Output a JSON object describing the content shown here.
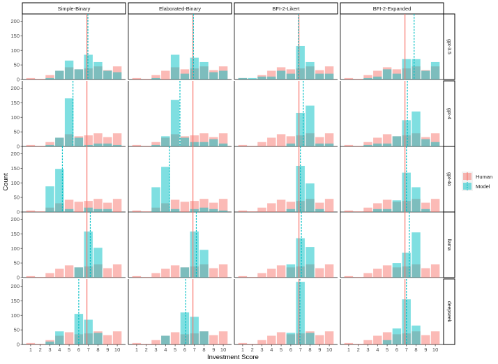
{
  "chart_data": {
    "type": "faceted-histogram",
    "xlabel": "Investment Score",
    "ylabel": "Count",
    "x": [
      1,
      2,
      3,
      4,
      5,
      6,
      7,
      8,
      9,
      10
    ],
    "ylim": [
      0,
      225
    ],
    "yticks": [
      0,
      50,
      100,
      150,
      200
    ],
    "xticks": [
      1,
      2,
      3,
      4,
      5,
      6,
      7,
      8,
      9,
      10
    ],
    "columns": [
      "Simple-Binary",
      "Elaborated-Binary",
      "BFI-2-Likert",
      "BFI-2-Expanded"
    ],
    "rows": [
      "gpt-3.5",
      "gpt-4",
      "gpt-4o",
      "llama",
      "deepseek"
    ],
    "legend": {
      "human": "Human",
      "model": "Model",
      "human_color": "#F8766D",
      "model_color": "#00BFC4",
      "position": "right"
    },
    "human_distribution": [
      5,
      2,
      15,
      30,
      42,
      35,
      38,
      45,
      32,
      45
    ],
    "human_mean": 6.85,
    "panels": [
      {
        "row": "gpt-3.5",
        "column": "Simple-Binary",
        "model_values": [
          0,
          0,
          5,
          30,
          65,
          35,
          85,
          60,
          30,
          25
        ],
        "model_mean": 6.95
      },
      {
        "row": "gpt-3.5",
        "column": "Elaborated-Binary",
        "model_values": [
          0,
          0,
          5,
          0,
          85,
          20,
          75,
          60,
          25,
          30
        ],
        "model_mean": 6.9
      },
      {
        "row": "gpt-3.5",
        "column": "BFI-2-Likert",
        "model_values": [
          5,
          5,
          10,
          10,
          30,
          20,
          115,
          60,
          20,
          20
        ],
        "model_mean": 6.8
      },
      {
        "row": "gpt-3.5",
        "column": "BFI-2-Expanded",
        "model_values": [
          0,
          0,
          5,
          10,
          35,
          20,
          70,
          70,
          30,
          60
        ],
        "model_mean": 7.8
      },
      {
        "row": "gpt-4",
        "column": "Simple-Binary",
        "model_values": [
          0,
          0,
          5,
          30,
          165,
          30,
          5,
          10,
          10,
          5
        ],
        "model_mean": 5.4
      },
      {
        "row": "gpt-4",
        "column": "Elaborated-Binary",
        "model_values": [
          0,
          0,
          5,
          35,
          160,
          30,
          15,
          15,
          25,
          10
        ],
        "model_mean": 5.5
      },
      {
        "row": "gpt-4",
        "column": "BFI-2-Likert",
        "model_values": [
          0,
          0,
          0,
          0,
          0,
          10,
          115,
          140,
          10,
          10
        ],
        "model_mean": 7.3
      },
      {
        "row": "gpt-4",
        "column": "BFI-2-Expanded",
        "model_values": [
          0,
          0,
          5,
          10,
          10,
          35,
          90,
          120,
          25,
          15
        ],
        "model_mean": 7.1
      },
      {
        "row": "gpt-4o",
        "column": "Simple-Binary",
        "model_values": [
          0,
          0,
          88,
          148,
          10,
          0,
          15,
          10,
          10,
          0
        ],
        "model_mean": 4.3
      },
      {
        "row": "gpt-4o",
        "column": "Elaborated-Binary",
        "model_values": [
          0,
          0,
          85,
          155,
          10,
          0,
          10,
          15,
          10,
          5
        ],
        "model_mean": 4.4
      },
      {
        "row": "gpt-4o",
        "column": "BFI-2-Likert",
        "model_values": [
          0,
          0,
          0,
          0,
          0,
          10,
          158,
          98,
          10,
          0
        ],
        "model_mean": 7.0
      },
      {
        "row": "gpt-4o",
        "column": "BFI-2-Expanded",
        "model_values": [
          0,
          0,
          0,
          10,
          10,
          40,
          135,
          85,
          10,
          0
        ],
        "model_mean": 7.0
      },
      {
        "row": "llama",
        "column": "Simple-Binary",
        "model_values": [
          0,
          0,
          0,
          0,
          0,
          35,
          158,
          102,
          0,
          0
        ],
        "model_mean": 7.2
      },
      {
        "row": "llama",
        "column": "Elaborated-Binary",
        "model_values": [
          0,
          0,
          0,
          0,
          0,
          35,
          158,
          95,
          0,
          0
        ],
        "model_mean": 7.2
      },
      {
        "row": "llama",
        "column": "BFI-2-Likert",
        "model_values": [
          0,
          0,
          0,
          0,
          0,
          45,
          135,
          105,
          0,
          0
        ],
        "model_mean": 7.1
      },
      {
        "row": "llama",
        "column": "BFI-2-Expanded",
        "model_values": [
          0,
          0,
          0,
          0,
          0,
          50,
          85,
          155,
          0,
          0
        ],
        "model_mean": 7.3
      },
      {
        "row": "deepseek",
        "column": "Simple-Binary",
        "model_values": [
          0,
          0,
          10,
          45,
          0,
          105,
          85,
          40,
          0,
          0
        ],
        "model_mean": 6.0
      },
      {
        "row": "deepseek",
        "column": "Elaborated-Binary",
        "model_values": [
          0,
          0,
          0,
          30,
          0,
          110,
          95,
          45,
          0,
          0
        ],
        "model_mean": 6.1
      },
      {
        "row": "deepseek",
        "column": "BFI-2-Likert",
        "model_values": [
          0,
          0,
          0,
          0,
          0,
          40,
          215,
          40,
          0,
          0
        ],
        "model_mean": 6.95
      },
      {
        "row": "deepseek",
        "column": "BFI-2-Expanded",
        "model_values": [
          0,
          0,
          0,
          0,
          15,
          55,
          155,
          65,
          0,
          0
        ],
        "model_mean": 7.0
      }
    ]
  }
}
